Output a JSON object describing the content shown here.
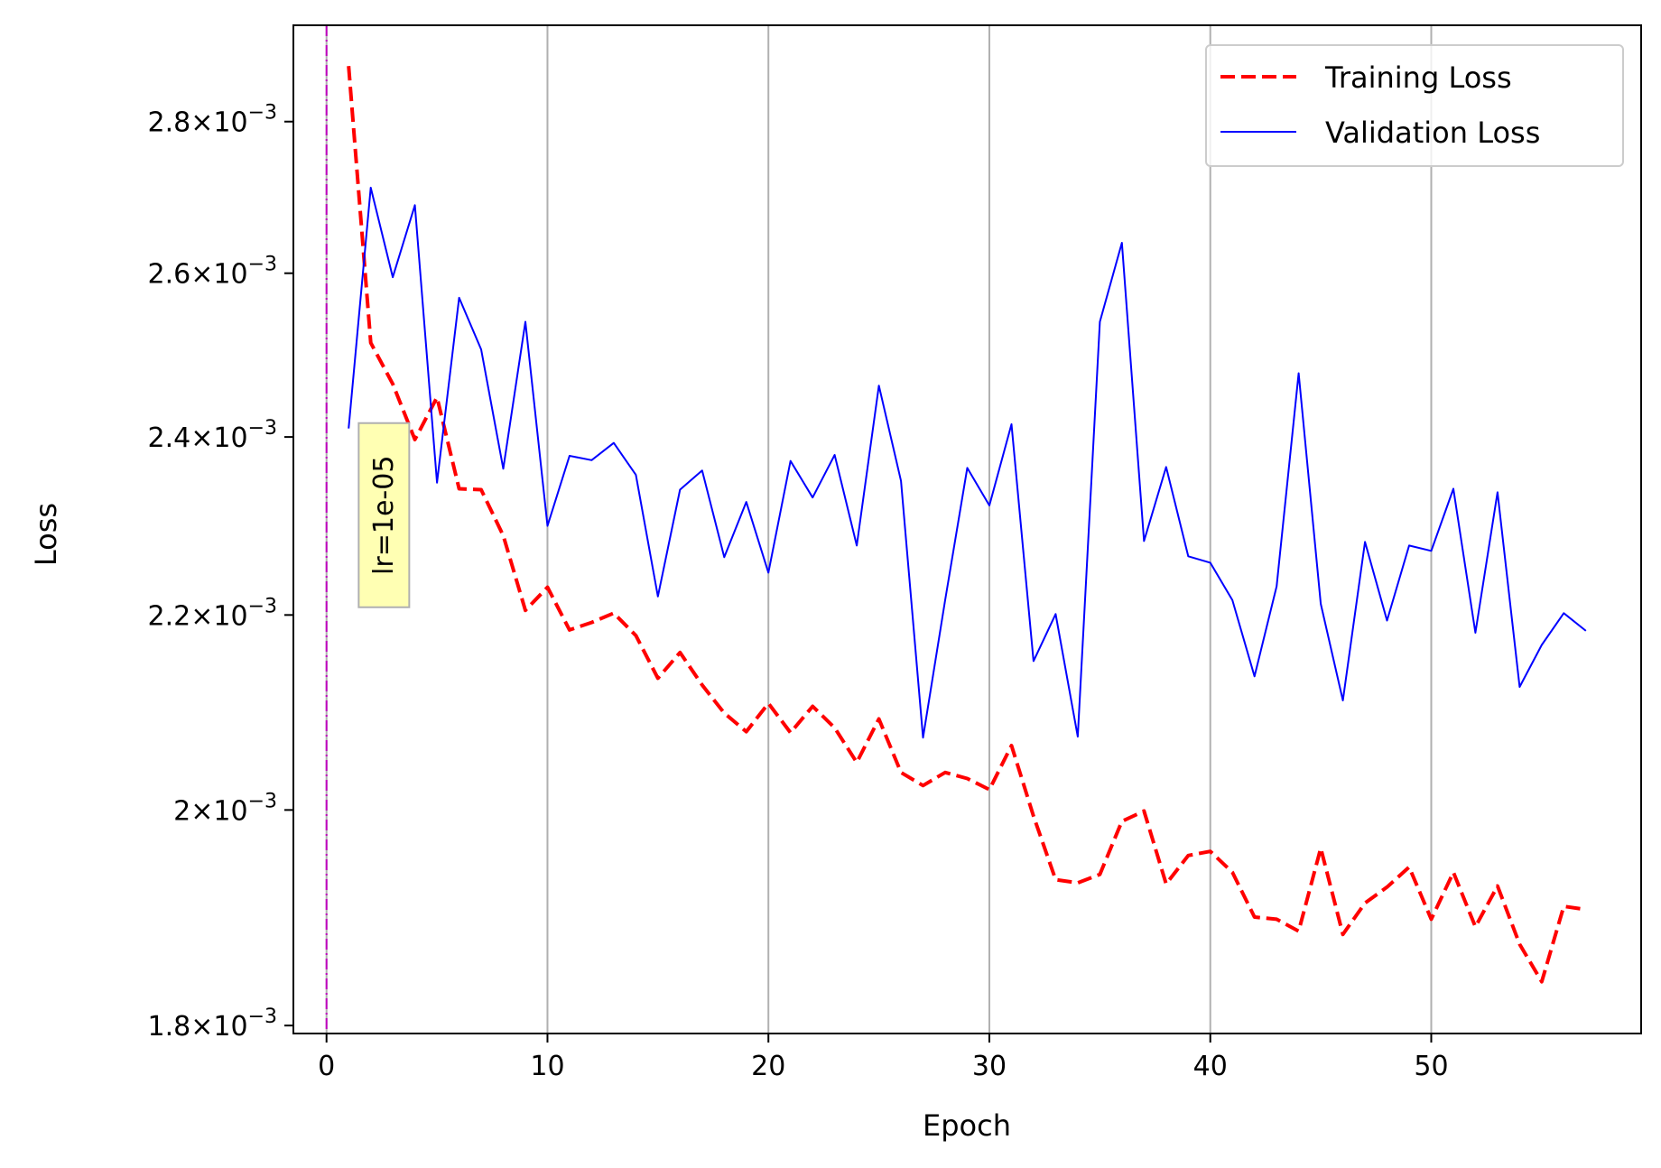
{
  "chart_data": {
    "type": "line",
    "xlabel": "Epoch",
    "ylabel": "Loss",
    "yscale": "log",
    "xlim": [
      -1.5,
      59.5
    ],
    "ylim": [
      0.001793,
      0.002935
    ],
    "grid": "vertical-major",
    "legend_position": "top-right",
    "x_ticks": [
      0,
      10,
      20,
      30,
      40,
      50
    ],
    "y_ticks": [
      {
        "value": 0.0018,
        "mantissa": "1.8",
        "base": "10",
        "exponent": "−3"
      },
      {
        "value": 0.002,
        "mantissa": "2",
        "base": "10",
        "exponent": "−3"
      },
      {
        "value": 0.0022,
        "mantissa": "2.2",
        "base": "10",
        "exponent": "−3"
      },
      {
        "value": 0.0024,
        "mantissa": "2.4",
        "base": "10",
        "exponent": "−3"
      },
      {
        "value": 0.0026,
        "mantissa": "2.6",
        "base": "10",
        "exponent": "−3"
      },
      {
        "value": 0.0028,
        "mantissa": "2.8",
        "base": "10",
        "exponent": "−3"
      }
    ],
    "x": [
      1,
      2,
      3,
      4,
      5,
      6,
      7,
      8,
      9,
      10,
      11,
      12,
      13,
      14,
      15,
      16,
      17,
      18,
      19,
      20,
      21,
      22,
      23,
      24,
      25,
      26,
      27,
      28,
      29,
      30,
      31,
      32,
      33,
      34,
      35,
      36,
      37,
      38,
      39,
      40,
      41,
      42,
      43,
      44,
      45,
      46,
      47,
      48,
      49,
      50,
      51,
      52,
      53,
      54,
      55,
      56,
      57
    ],
    "series": [
      {
        "name": "Training Loss",
        "color": "#ff0000",
        "style": "dashed",
        "values": [
          0.002877,
          0.002513,
          0.002463,
          0.002397,
          0.002447,
          0.00234,
          0.002339,
          0.002287,
          0.002205,
          0.00223,
          0.002184,
          0.002192,
          0.002202,
          0.002178,
          0.002133,
          0.00216,
          0.002126,
          0.002097,
          0.002078,
          0.002107,
          0.002077,
          0.002104,
          0.002082,
          0.002047,
          0.002091,
          0.002037,
          0.002024,
          0.002037,
          0.002031,
          0.00202,
          0.002064,
          0.001994,
          0.001933,
          0.00193,
          0.001938,
          0.001989,
          0.001999,
          0.001929,
          0.001956,
          0.00196,
          0.00194,
          0.001898,
          0.001896,
          0.001885,
          0.001963,
          0.001882,
          0.001911,
          0.001926,
          0.001945,
          0.001896,
          0.00194,
          0.001889,
          0.001927,
          0.001873,
          0.001839,
          0.001908,
          0.001905
        ]
      },
      {
        "name": "Validation Loss",
        "color": "#0000ff",
        "style": "solid",
        "values": [
          0.00241,
          0.002711,
          0.002595,
          0.002688,
          0.002347,
          0.002569,
          0.002505,
          0.002363,
          0.002539,
          0.002298,
          0.002378,
          0.002373,
          0.002393,
          0.002356,
          0.00222,
          0.002339,
          0.002361,
          0.002263,
          0.002325,
          0.002246,
          0.002372,
          0.00233,
          0.002379,
          0.002276,
          0.002461,
          0.002349,
          0.002072,
          0.002216,
          0.002364,
          0.002321,
          0.002415,
          0.002151,
          0.002201,
          0.002073,
          0.002539,
          0.002639,
          0.002281,
          0.002365,
          0.002264,
          0.002257,
          0.002216,
          0.002135,
          0.002231,
          0.002476,
          0.002212,
          0.00211,
          0.00228,
          0.002194,
          0.002276,
          0.00227,
          0.00234,
          0.002181,
          0.002336,
          0.002124,
          0.002168,
          0.002202,
          0.002183
        ]
      }
    ],
    "vline": {
      "x": 0,
      "color": "#bf00bf",
      "style": "dashdot"
    },
    "annotation": {
      "text": "lr=1e-05",
      "x": 2.6,
      "y": 0.00231,
      "rotation": -90,
      "box_color": "#ffffb3"
    }
  }
}
